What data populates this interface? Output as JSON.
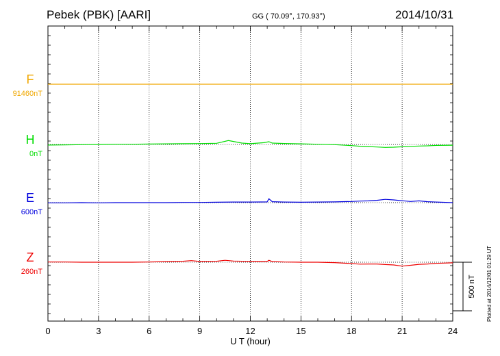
{
  "header": {
    "station": "Pebek (PBK)  [AARI]",
    "coords": "GG ( 70.09°, 170.93°)",
    "date": "2014/10/31"
  },
  "plotted": "Plotted at 2014/12/01 01:29 UT",
  "chart_data": {
    "type": "line",
    "xlabel": "U T (hour)",
    "xlim": [
      0,
      24
    ],
    "xticks": [
      0,
      3,
      6,
      9,
      12,
      15,
      18,
      21,
      24
    ],
    "grid": "dotted vertical at every 3 hours",
    "scale_bar": {
      "label": "500 nT",
      "value": 500
    },
    "series": [
      {
        "name": "F",
        "baseline_label": "91460nT",
        "color": "#f0a800",
        "x": [
          0,
          3,
          6,
          9,
          12,
          15,
          18,
          21,
          24
        ],
        "y": [
          0,
          0,
          0,
          0,
          0,
          0,
          0,
          0,
          0
        ]
      },
      {
        "name": "H",
        "baseline_label": "0nT",
        "color": "#00dd00",
        "x": [
          0,
          1,
          2,
          3,
          4,
          5,
          6,
          7,
          8,
          9,
          10,
          10.7,
          11.5,
          12,
          12.8,
          13.1,
          13.3,
          14,
          15,
          16,
          17,
          18,
          18.5,
          19,
          19.5,
          20,
          20.5,
          21,
          21.5,
          22,
          22.5,
          23,
          24
        ],
        "y": [
          -6,
          -4,
          -2,
          0,
          2,
          2,
          4,
          6,
          8,
          9,
          12,
          40,
          14,
          8,
          18,
          28,
          14,
          10,
          6,
          2,
          -2,
          -12,
          -18,
          -22,
          -26,
          -30,
          -28,
          -24,
          -20,
          -16,
          -14,
          -10,
          -8
        ]
      },
      {
        "name": "E",
        "baseline_label": "600nT",
        "color": "#0000dd",
        "x": [
          0,
          1,
          2,
          3,
          4,
          5,
          6,
          7,
          8,
          9,
          10,
          11,
          12,
          13,
          13.1,
          13.3,
          14,
          15,
          16,
          17,
          18,
          18.5,
          19,
          19.5,
          20,
          20.5,
          21,
          21.5,
          22,
          22.5,
          23,
          24
        ],
        "y": [
          -2,
          -2,
          0,
          -2,
          0,
          0,
          0,
          0,
          2,
          2,
          4,
          6,
          6,
          8,
          40,
          10,
          6,
          4,
          6,
          8,
          12,
          16,
          18,
          24,
          34,
          28,
          20,
          12,
          18,
          10,
          6,
          0
        ]
      },
      {
        "name": "Z",
        "baseline_label": "260nT",
        "color": "#ee0000",
        "x": [
          0,
          1,
          2,
          3,
          4,
          5,
          6,
          7,
          8,
          8.5,
          9,
          10,
          10.5,
          11,
          12,
          13,
          13.1,
          13.3,
          14,
          15,
          16,
          17,
          18,
          18.5,
          19,
          19.5,
          20,
          20.5,
          21,
          21.5,
          22,
          22.5,
          23,
          24
        ],
        "y": [
          2,
          2,
          0,
          0,
          0,
          0,
          2,
          6,
          10,
          16,
          8,
          10,
          20,
          12,
          8,
          8,
          20,
          6,
          2,
          0,
          0,
          -4,
          -14,
          -20,
          -18,
          -18,
          -24,
          -28,
          -40,
          -32,
          -22,
          -18,
          -12,
          -6
        ]
      }
    ]
  }
}
